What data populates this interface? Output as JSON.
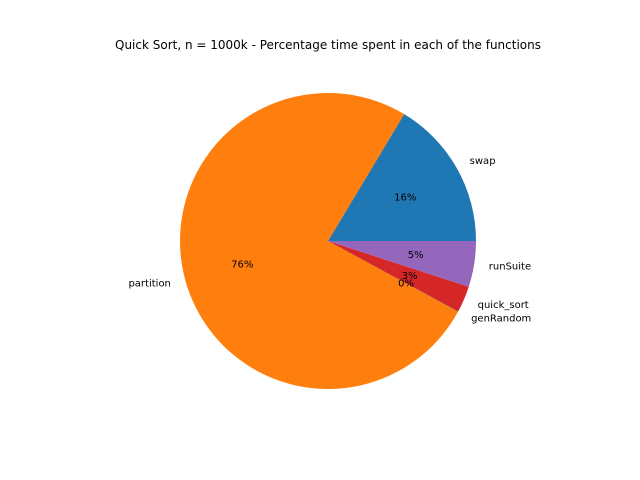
{
  "chart_data": {
    "type": "pie",
    "title": "Quick Sort, n = 1000k - Percentage time spent in each of the functions",
    "slices": [
      {
        "label": "swap",
        "value": 16.4,
        "pct_label": "16%",
        "color": "#1f77b4"
      },
      {
        "label": "partition",
        "value": 75.7,
        "pct_label": "76%",
        "color": "#ff7f0e"
      },
      {
        "label": "genRandom",
        "value": 0.04,
        "pct_label": "0%",
        "color": "#2ca02c"
      },
      {
        "label": "quick_sort",
        "value": 2.9,
        "pct_label": "3%",
        "color": "#d62728"
      },
      {
        "label": "runSuite",
        "value": 5.0,
        "pct_label": "5%",
        "color": "#9467bd"
      }
    ],
    "start_angle": 0,
    "direction": "counterclockwise",
    "legend": "none"
  }
}
